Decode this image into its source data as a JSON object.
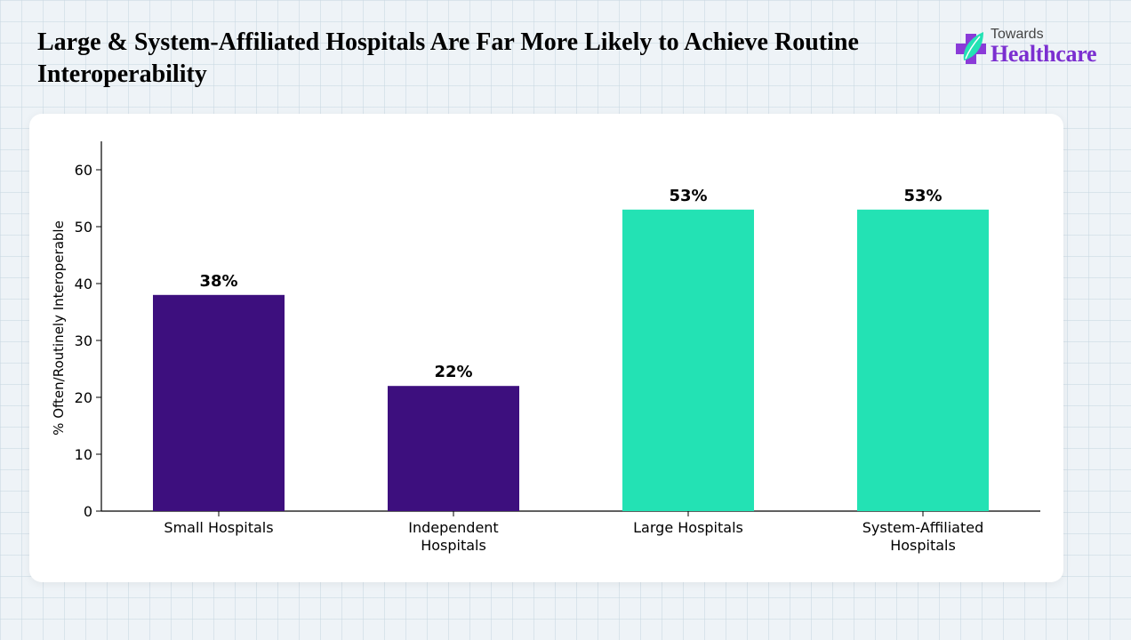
{
  "header": {
    "title": "Large & System-Affiliated Hospitals Are Far More Likely to Achieve Routine Interoperability"
  },
  "logo": {
    "small_text": "Towards",
    "big_text": "Healthcare",
    "icon": "medical-cross-leaf-icon",
    "colors": {
      "primary": "#7b2fd0",
      "secondary": "#23e2b4"
    }
  },
  "chart_data": {
    "type": "bar",
    "categories": [
      [
        "Small Hospitals"
      ],
      [
        "Independent",
        "Hospitals"
      ],
      [
        "Large Hospitals"
      ],
      [
        "System-Affiliated",
        "Hospitals"
      ]
    ],
    "values": [
      38,
      22,
      53,
      53
    ],
    "value_labels": [
      "38%",
      "22%",
      "53%",
      "53%"
    ],
    "colors": [
      "#3d0f7e",
      "#3d0f7e",
      "#23e2b4",
      "#23e2b4"
    ],
    "ylabel": "% Often/Routinely Interoperable",
    "xlabel": "",
    "ylim": [
      0,
      65
    ],
    "yticks": [
      0,
      10,
      20,
      30,
      40,
      50,
      60
    ],
    "grid": false,
    "legend": "none"
  }
}
